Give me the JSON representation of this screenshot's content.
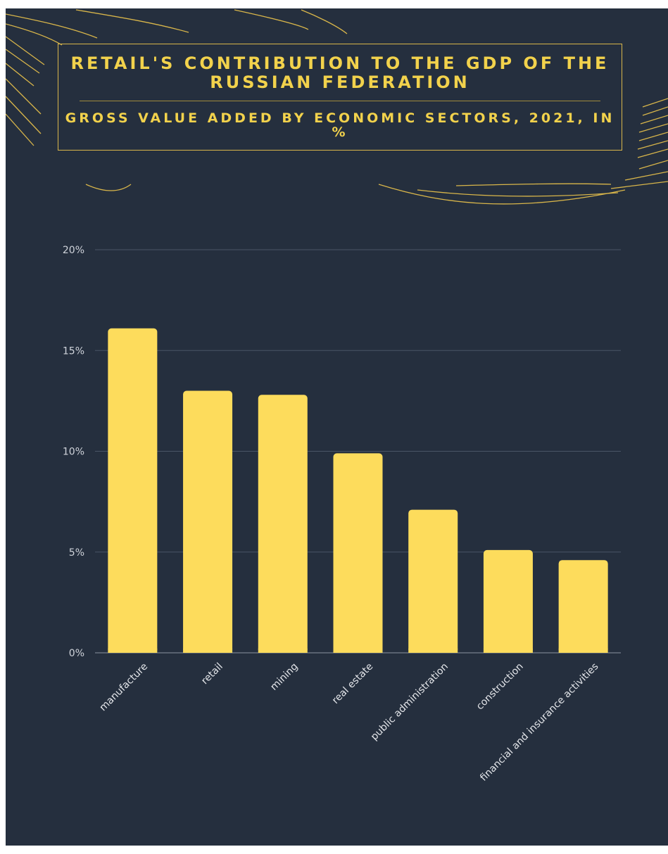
{
  "header": {
    "title": "RETAIL'S CONTRIBUTION TO THE GDP OF THE RUSSIAN FEDERATION",
    "subtitle": "GROSS VALUE ADDED BY ECONOMIC SECTORS, 2021, IN %"
  },
  "colors": {
    "background": "#252f3e",
    "bar": "#fddc5c",
    "accent": "#f2d24c",
    "gridline": "#4a5566"
  },
  "chart_data": {
    "type": "bar",
    "categories": [
      "manufacture",
      "retail",
      "mining",
      "real estate",
      "public administration",
      "construction",
      "financial and insurance activities"
    ],
    "values": [
      16.1,
      13.0,
      12.8,
      9.9,
      7.1,
      5.1,
      4.6
    ],
    "ylim": [
      0,
      20
    ],
    "yticks": [
      0,
      5,
      10,
      15,
      20
    ],
    "ytick_labels": [
      "0%",
      "5%",
      "10%",
      "15%",
      "20%"
    ],
    "grid": true,
    "legend": "none"
  }
}
